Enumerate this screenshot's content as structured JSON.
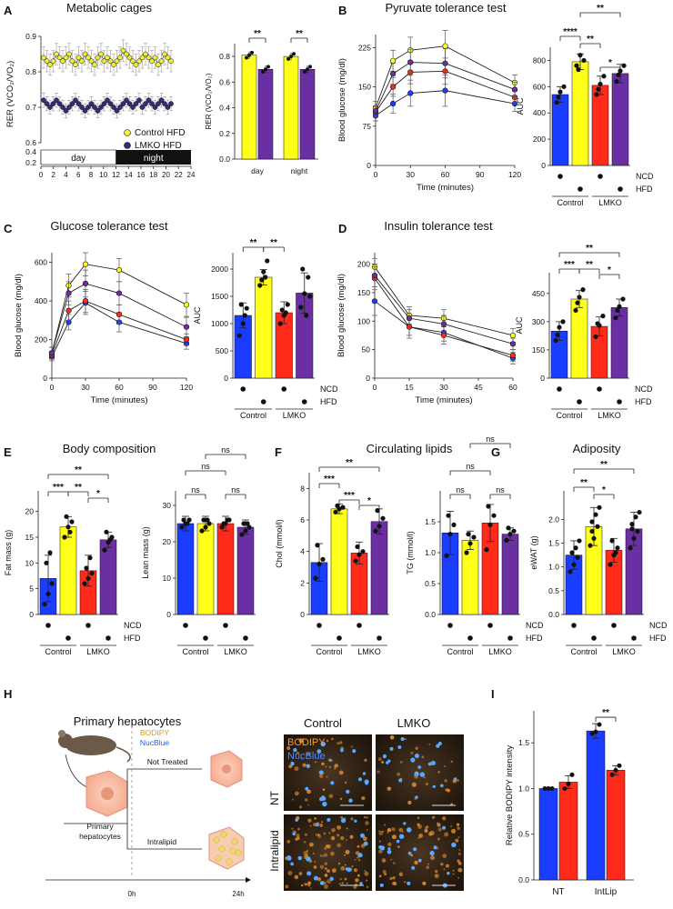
{
  "colors": {
    "ctrl_ncd": "#1a3cff",
    "ctrl_hfd": "#ffff1a",
    "lmko_ncd": "#ff2a1a",
    "lmko_hfd": "#6a2fa3",
    "line_ctrl": "#f2ef3a",
    "line_lmko": "#3a2a7a"
  },
  "legend_rows": {
    "ncd": "NCD",
    "hfd": "HFD",
    "group_control": "Control",
    "group_lmko": "LMKO"
  },
  "panel_letters": [
    "A",
    "B",
    "C",
    "D",
    "E",
    "F",
    "G",
    "H",
    "I"
  ],
  "chart_data": [
    {
      "id": "A1",
      "type": "line",
      "title": "Metabolic cages",
      "ylabel": "RER (VCO₂/VO₂)",
      "ylim": [
        0.6,
        0.9
      ],
      "yticks": [
        "0.9",
        "0.8",
        "0.7",
        "0.6"
      ],
      "xlim": [
        0,
        24
      ],
      "xticks": [
        "0",
        "2",
        "4",
        "6",
        "8",
        "10",
        "12",
        "14",
        "16",
        "18",
        "20",
        "22",
        "24"
      ],
      "strip": {
        "yticks": [
          "0.4",
          "0.2"
        ],
        "day": "day",
        "night": "night",
        "night_start": 12
      },
      "legend": [
        "Control HFD",
        "LMKO HFD"
      ],
      "series": [
        {
          "name": "Control HFD",
          "values": [
            0.84,
            0.83,
            0.82,
            0.83,
            0.85,
            0.84,
            0.83,
            0.84,
            0.85,
            0.83,
            0.82,
            0.84,
            0.83,
            0.85,
            0.84,
            0.83,
            0.82,
            0.84,
            0.85,
            0.83,
            0.84,
            0.83,
            0.82,
            0.83,
            0.84,
            0.86,
            0.85,
            0.84,
            0.83,
            0.82,
            0.83,
            0.84,
            0.85,
            0.84,
            0.83,
            0.84,
            0.82,
            0.83,
            0.85,
            0.84,
            0.83
          ],
          "err": 0.03
        },
        {
          "name": "LMKO HFD",
          "values": [
            0.72,
            0.71,
            0.7,
            0.71,
            0.72,
            0.71,
            0.7,
            0.69,
            0.7,
            0.71,
            0.72,
            0.71,
            0.7,
            0.69,
            0.7,
            0.71,
            0.7,
            0.69,
            0.7,
            0.71,
            0.72,
            0.71,
            0.7,
            0.69,
            0.7,
            0.71,
            0.72,
            0.71,
            0.7,
            0.71,
            0.72,
            0.7,
            0.71,
            0.72,
            0.71,
            0.7,
            0.71,
            0.72,
            0.71,
            0.7,
            0.71
          ],
          "err": 0.02
        }
      ]
    },
    {
      "id": "A2",
      "type": "bar",
      "ylabel": "RER (VCO₂/VO₂)",
      "ylim": [
        0,
        0.9
      ],
      "yticks": [
        "0.8",
        "0.6",
        "0.4",
        "0.2",
        "0.0"
      ],
      "categories": [
        "day",
        "night"
      ],
      "series": [
        {
          "name": "Control HFD",
          "values": [
            0.81,
            0.8
          ]
        },
        {
          "name": "LMKO HFD",
          "values": [
            0.7,
            0.7
          ]
        }
      ],
      "sig": [
        "**",
        "**"
      ]
    },
    {
      "id": "B1",
      "type": "line",
      "title": "Pyruvate tolerance test",
      "xlabel": "Time (minutes)",
      "ylabel": "Blood glucose (mg/dl)",
      "xlim": [
        0,
        120
      ],
      "ylim": [
        0,
        250
      ],
      "xticks": [
        "0",
        "30",
        "60",
        "90",
        "120"
      ],
      "yticks": [
        "225",
        "150",
        "75",
        "0"
      ],
      "x": [
        0,
        15,
        30,
        60,
        120
      ],
      "series": [
        {
          "name": "Control NCD",
          "values": [
            95,
            118,
            138,
            143,
            118
          ],
          "err": [
            10,
            18,
            25,
            30,
            15
          ]
        },
        {
          "name": "Control HFD",
          "values": [
            110,
            200,
            220,
            228,
            158
          ],
          "err": [
            12,
            20,
            25,
            30,
            15
          ]
        },
        {
          "name": "LMKO NCD",
          "values": [
            102,
            150,
            178,
            180,
            130
          ],
          "err": [
            10,
            18,
            22,
            25,
            12
          ]
        },
        {
          "name": "LMKO HFD",
          "values": [
            104,
            175,
            197,
            195,
            145
          ],
          "err": [
            10,
            20,
            25,
            28,
            14
          ]
        }
      ]
    },
    {
      "id": "B2",
      "type": "bar",
      "ylabel": "AUC",
      "ylim": [
        0,
        900
      ],
      "yticks": [
        "800",
        "600",
        "400",
        "200",
        "0"
      ],
      "values": [
        540,
        790,
        610,
        700
      ],
      "points": [
        [
          480,
          560,
          600,
          520
        ],
        [
          760,
          840,
          800,
          730
        ],
        [
          540,
          620,
          680,
          580
        ],
        [
          640,
          720,
          760,
          690
        ]
      ],
      "err": [
        60,
        60,
        70,
        70
      ],
      "sig": [
        "****",
        "**",
        "*",
        "**"
      ]
    },
    {
      "id": "C1",
      "type": "line",
      "title": "Glucose tolerance test",
      "xlabel": "Time (minutes)",
      "ylabel": "Blood glucose (mg/dl)",
      "xlim": [
        0,
        120
      ],
      "ylim": [
        0,
        650
      ],
      "xticks": [
        "0",
        "30",
        "60",
        "90",
        "120"
      ],
      "yticks": [
        "600",
        "400",
        "200",
        "0"
      ],
      "x": [
        0,
        15,
        30,
        60,
        120
      ],
      "series": [
        {
          "name": "Control NCD",
          "values": [
            110,
            290,
            390,
            290,
            180
          ],
          "err": [
            20,
            40,
            60,
            50,
            30
          ]
        },
        {
          "name": "Control HFD",
          "values": [
            130,
            480,
            590,
            560,
            380
          ],
          "err": [
            30,
            60,
            60,
            60,
            60
          ]
        },
        {
          "name": "LMKO NCD",
          "values": [
            120,
            350,
            400,
            330,
            200
          ],
          "err": [
            20,
            50,
            60,
            50,
            30
          ]
        },
        {
          "name": "LMKO HFD",
          "values": [
            130,
            440,
            490,
            440,
            265
          ],
          "err": [
            30,
            60,
            70,
            60,
            50
          ]
        }
      ]
    },
    {
      "id": "C2",
      "type": "bar",
      "ylabel": "AUC",
      "ylim": [
        0,
        2300
      ],
      "yticks": [
        "2000",
        "1500",
        "1000",
        "500",
        "0"
      ],
      "values": [
        1150,
        1850,
        1200,
        1560
      ],
      "points": [
        [
          780,
          1000,
          1280,
          1350,
          1150
        ],
        [
          1700,
          1950,
          2150,
          1800,
          1850
        ],
        [
          1000,
          1150,
          1350,
          1250,
          1200
        ],
        [
          1300,
          1550,
          1850,
          2000,
          1150,
          1500
        ]
      ],
      "err": [
        230,
        140,
        200,
        370
      ],
      "sig": [
        "**",
        "**"
      ]
    },
    {
      "id": "D1",
      "type": "line",
      "title": "Insulin tolerance test",
      "xlabel": "Time (minutes)",
      "ylabel": "Blood glucose (mg/dl)",
      "xlim": [
        0,
        60
      ],
      "ylim": [
        0,
        220
      ],
      "xticks": [
        "0",
        "15",
        "30",
        "45",
        "60"
      ],
      "yticks": [
        "200",
        "150",
        "100",
        "50",
        "0"
      ],
      "x": [
        0,
        15,
        30,
        60
      ],
      "series": [
        {
          "name": "Control NCD",
          "values": [
            135,
            90,
            80,
            35
          ],
          "err": [
            25,
            20,
            15,
            10
          ]
        },
        {
          "name": "Control HFD",
          "values": [
            195,
            110,
            105,
            75
          ],
          "err": [
            15,
            15,
            15,
            12
          ]
        },
        {
          "name": "LMKO NCD",
          "values": [
            175,
            90,
            75,
            40
          ],
          "err": [
            20,
            15,
            15,
            10
          ]
        },
        {
          "name": "LMKO HFD",
          "values": [
            180,
            105,
            95,
            60
          ],
          "err": [
            20,
            15,
            15,
            10
          ]
        }
      ]
    },
    {
      "id": "D2",
      "type": "bar",
      "ylabel": "AUC",
      "ylim": [
        0,
        560
      ],
      "yticks": [
        "450",
        "300",
        "150",
        "0"
      ],
      "values": [
        250,
        420,
        275,
        375
      ],
      "points": [
        [
          200,
          270,
          300,
          230
        ],
        [
          360,
          430,
          470,
          400
        ],
        [
          220,
          280,
          330,
          290
        ],
        [
          320,
          380,
          420,
          360
        ]
      ],
      "err": [
        50,
        45,
        50,
        45
      ],
      "sig": [
        "***",
        "**",
        "*",
        "**"
      ]
    },
    {
      "id": "E1",
      "type": "bar",
      "title": "Body composition",
      "ylabel": "Fat mass (g)",
      "ylim": [
        0,
        24
      ],
      "yticks": [
        "20",
        "15",
        "10",
        "5",
        "0"
      ],
      "values": [
        7,
        17,
        8.5,
        14.5
      ],
      "points": [
        [
          2,
          4,
          6,
          10,
          12
        ],
        [
          15,
          17,
          18,
          19,
          16
        ],
        [
          6,
          7,
          8,
          9,
          11
        ],
        [
          12.5,
          14,
          15,
          16,
          14.5
        ]
      ],
      "err": [
        4.5,
        2,
        3,
        1.5
      ],
      "sig": [
        "***",
        "**",
        "*",
        "**"
      ]
    },
    {
      "id": "E2",
      "type": "bar",
      "ylabel": "Lean mass (g)",
      "ylim": [
        0,
        34
      ],
      "yticks": [
        "30",
        "20",
        "10",
        "0"
      ],
      "values": [
        25,
        25,
        25,
        24
      ],
      "points": [
        [
          24,
          25,
          26,
          26,
          25
        ],
        [
          23,
          24,
          25,
          26,
          26
        ],
        [
          24,
          25,
          26,
          25,
          26
        ],
        [
          22,
          23,
          24,
          25,
          25
        ]
      ],
      "err": [
        2,
        2,
        2,
        2
      ],
      "sig": [
        "ns",
        "ns",
        "ns",
        "ns"
      ]
    },
    {
      "id": "F1",
      "type": "bar",
      "title": "Circulating lipids",
      "ylabel": "Chol (mmol/l)",
      "ylim": [
        0,
        9
      ],
      "yticks": [
        "8",
        "6",
        "4",
        "2",
        "0"
      ],
      "values": [
        3.3,
        6.7,
        3.9,
        5.9
      ],
      "points": [
        [
          2.3,
          3.2,
          3.5,
          4.4
        ],
        [
          6.5,
          6.7,
          6.8,
          6.9
        ],
        [
          3.4,
          3.8,
          4.0,
          4.3
        ],
        [
          5.3,
          5.6,
          6.1,
          6.6
        ]
      ],
      "err": [
        1.2,
        0.3,
        0.7,
        0.8
      ],
      "sig": [
        "***",
        "***",
        "*",
        "**"
      ]
    },
    {
      "id": "F2",
      "type": "bar",
      "ylabel": "TG (mmol/l)",
      "ylim": [
        0,
        2.0
      ],
      "yticks": [
        "1.5",
        "1.0",
        "0.5",
        "0.0"
      ],
      "values": [
        1.32,
        1.2,
        1.48,
        1.3
      ],
      "points": [
        [
          0.95,
          1.3,
          1.45,
          1.6
        ],
        [
          1.0,
          1.15,
          1.25,
          1.3
        ],
        [
          1.05,
          1.45,
          1.6,
          1.75
        ],
        [
          1.2,
          1.3,
          1.35,
          1.4
        ]
      ],
      "err": [
        0.35,
        0.15,
        0.3,
        0.1
      ],
      "sig": [
        "ns",
        "ns",
        "ns",
        "ns"
      ]
    },
    {
      "id": "G1",
      "type": "bar",
      "title": "Adiposity",
      "ylabel": "eWAT (g)",
      "ylim": [
        0,
        2.6
      ],
      "yticks": [
        "2.0",
        "1.5",
        "1.0",
        "0.5",
        "0.0"
      ],
      "values": [
        1.25,
        1.85,
        1.35,
        1.8
      ],
      "points": [
        [
          0.9,
          1.05,
          1.2,
          1.3,
          1.4,
          1.55
        ],
        [
          1.45,
          1.6,
          1.85,
          1.95,
          2.1,
          2.25,
          1.75
        ],
        [
          1.05,
          1.25,
          1.4,
          1.55,
          1.3
        ],
        [
          1.4,
          1.6,
          1.75,
          1.9,
          2.05,
          2.15,
          1.8
        ]
      ],
      "err": [
        0.3,
        0.4,
        0.25,
        0.35
      ],
      "sig": [
        "**",
        "*",
        "**"
      ]
    },
    {
      "id": "I1",
      "type": "bar",
      "ylabel": "Relative BODIPY intensity",
      "ylim": [
        0,
        1.85
      ],
      "yticks": [
        "1.5",
        "1.0",
        "0.5",
        "0.0"
      ],
      "categories": [
        "NT",
        "IntLip"
      ],
      "series": [
        {
          "name": "Control",
          "values": [
            1.0,
            1.63
          ]
        },
        {
          "name": "LMKO",
          "values": [
            1.07,
            1.2
          ]
        }
      ],
      "points": [
        [
          [
            1.0,
            1.0,
            1.0
          ],
          [
            1.6,
            1.62,
            1.7
          ]
        ],
        [
          [
            1.0,
            1.05,
            1.15
          ],
          [
            1.15,
            1.2,
            1.25
          ]
        ]
      ],
      "err": [
        [
          0,
          0.08
        ],
        [
          0.07,
          0.05
        ]
      ],
      "sig": [
        "**"
      ]
    }
  ],
  "H": {
    "title": "Primary hepatocytes",
    "stain_bodipy": "BODIPY",
    "stain_nucblue": "NucBlue",
    "cell_label": "Primary\nhepatocytes",
    "arm_not_treated": "Not Treated",
    "arm_intralipid": "Intralipid",
    "time_start": "0h",
    "time_end": "24h",
    "micro_col_control": "Control",
    "micro_col_lmko": "LMKO",
    "micro_row_nt": "NT",
    "micro_row_intralipid": "Intralipid"
  }
}
